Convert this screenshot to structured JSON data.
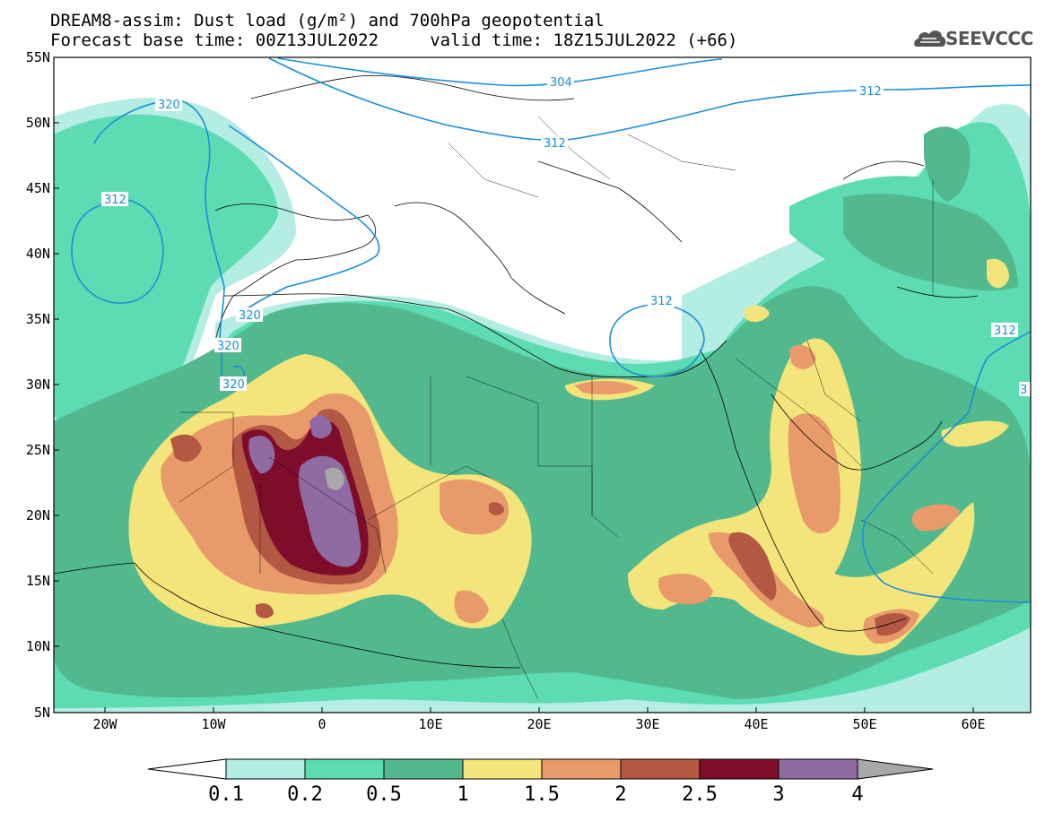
{
  "header": {
    "title_line1": "DREAM8-assim: Dust load (g/m²) and 700hPa geopotential",
    "title_line2": "Forecast base time: 00Z13JUL2022     valid time: 18Z15JUL2022 (+66)"
  },
  "logo": {
    "text": "SEEVCCC",
    "icon": "cloud-icon"
  },
  "map": {
    "lon_range": [
      -25,
      65
    ],
    "lat_range": [
      5,
      55
    ],
    "lon_ticks": [
      "20W",
      "10W",
      "0",
      "10E",
      "20E",
      "30E",
      "40E",
      "50E",
      "60E"
    ],
    "lat_ticks": [
      "55N",
      "50N",
      "45N",
      "40N",
      "35N",
      "30N",
      "25N",
      "20N",
      "15N",
      "10N",
      "5N"
    ],
    "contour_color": "#1a8fd8",
    "contour_labels": [
      "320",
      "312",
      "304",
      "312",
      "312",
      "312",
      "312",
      "320",
      "320",
      "320",
      "312",
      "3"
    ]
  },
  "colorbar": {
    "levels": [
      "0.1",
      "0.2",
      "0.5",
      "1",
      "1.5",
      "2",
      "2.5",
      "3",
      "4"
    ],
    "colors": [
      "#b3ede3",
      "#5ddcb3",
      "#52b98e",
      "#f3e47b",
      "#e89a6a",
      "#b35843",
      "#7e0d2c",
      "#8f6aa3",
      "#a8a8a8"
    ]
  }
}
